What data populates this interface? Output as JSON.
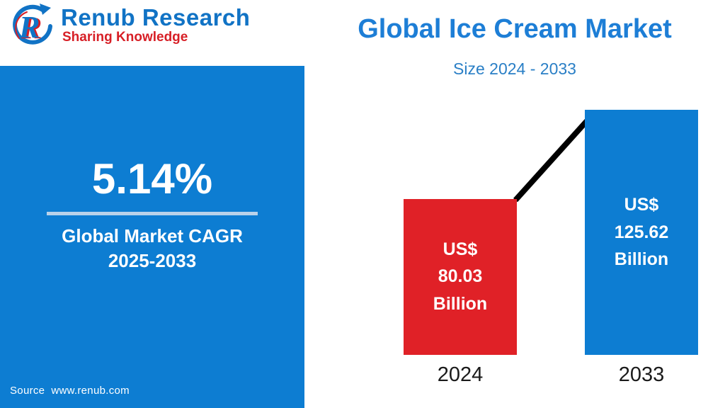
{
  "brand": {
    "name": "Renub Research",
    "tagline": "Sharing Knowledge",
    "colors": {
      "blue": "#1173c5",
      "red": "#d71f26"
    }
  },
  "header": {
    "title": "Global Ice Cream Market",
    "subtitle": "Size 2024 - 2033"
  },
  "left_panel": {
    "cagr_value": "5.14%",
    "cagr_label_line1": "Global Market CAGR",
    "cagr_label_line2": "2025-2033",
    "source_label": "Source",
    "source_url": "www.renub.com",
    "bg_color": "#0d7dd2"
  },
  "chart_data": {
    "type": "bar",
    "title": "Global Ice Cream Market",
    "subtitle": "Size 2024 - 2033",
    "categories": [
      "2024",
      "2033"
    ],
    "values": [
      80.03,
      125.62
    ],
    "unit": "US$ Billion",
    "bar_labels": [
      [
        "US$",
        "80.03",
        "Billion"
      ],
      [
        "US$",
        "125.62",
        "Billion"
      ]
    ],
    "bar_colors": [
      "#e02127",
      "#0d7dd2"
    ],
    "ylim": [
      0,
      130
    ],
    "grid": false,
    "legend": "none",
    "trend_line_color": "#000000"
  }
}
